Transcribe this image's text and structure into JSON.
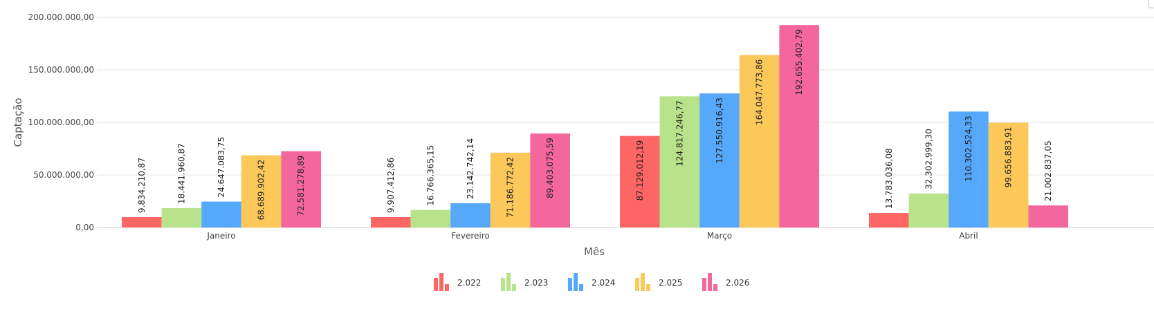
{
  "chart_data": {
    "type": "bar",
    "xlabel": "Mês",
    "ylabel": "Captação",
    "ylim": [
      0,
      200000000
    ],
    "yticks": [
      0,
      50000000,
      100000000,
      150000000,
      200000000
    ],
    "ytick_labels": [
      "0,00",
      "50.000.000,00",
      "100.000.000,00",
      "150.000.000,00",
      "200.000.000,00"
    ],
    "grid": true,
    "legend_position": "bottom",
    "categories": [
      "Janeiro",
      "Fevereiro",
      "Março",
      "Abril"
    ],
    "series": [
      {
        "name": "2.022",
        "color": "#fe6565",
        "values": [
          9834210.87,
          9907412.86,
          87129012.19,
          13783036.08
        ],
        "labels": [
          "9.834.210,87",
          "9.907.412,86",
          "87.129.012,19",
          "13.783.036,08"
        ]
      },
      {
        "name": "2.023",
        "color": "#b9e38a",
        "values": [
          18441960.87,
          16766365.15,
          124817246.77,
          32302999.3
        ],
        "labels": [
          "18.441.960,87",
          "16.766.365,15",
          "124.817.246,77",
          "32.302.999,30"
        ]
      },
      {
        "name": "2.024",
        "color": "#55a8fa",
        "values": [
          24647083.75,
          23142742.14,
          127550916.43,
          110302524.33
        ],
        "labels": [
          "24.647.083,75",
          "23.142.742,14",
          "127.550.916,43",
          "110.302.524,33"
        ]
      },
      {
        "name": "2.025",
        "color": "#fdc85a",
        "values": [
          68689902.42,
          71186772.42,
          164047773.86,
          99656883.91
        ],
        "labels": [
          "68.689.902,42",
          "71.186.772,42",
          "164.047.773,86",
          "99.656.883,91"
        ]
      },
      {
        "name": "2.026",
        "color": "#f4679c",
        "values": [
          72581278.89,
          89403075.59,
          192655402.79,
          21002837.05
        ],
        "labels": [
          "72.581.278,89",
          "89.403.075,59",
          "192.655.402,79",
          "21.002.837,05"
        ]
      }
    ]
  }
}
